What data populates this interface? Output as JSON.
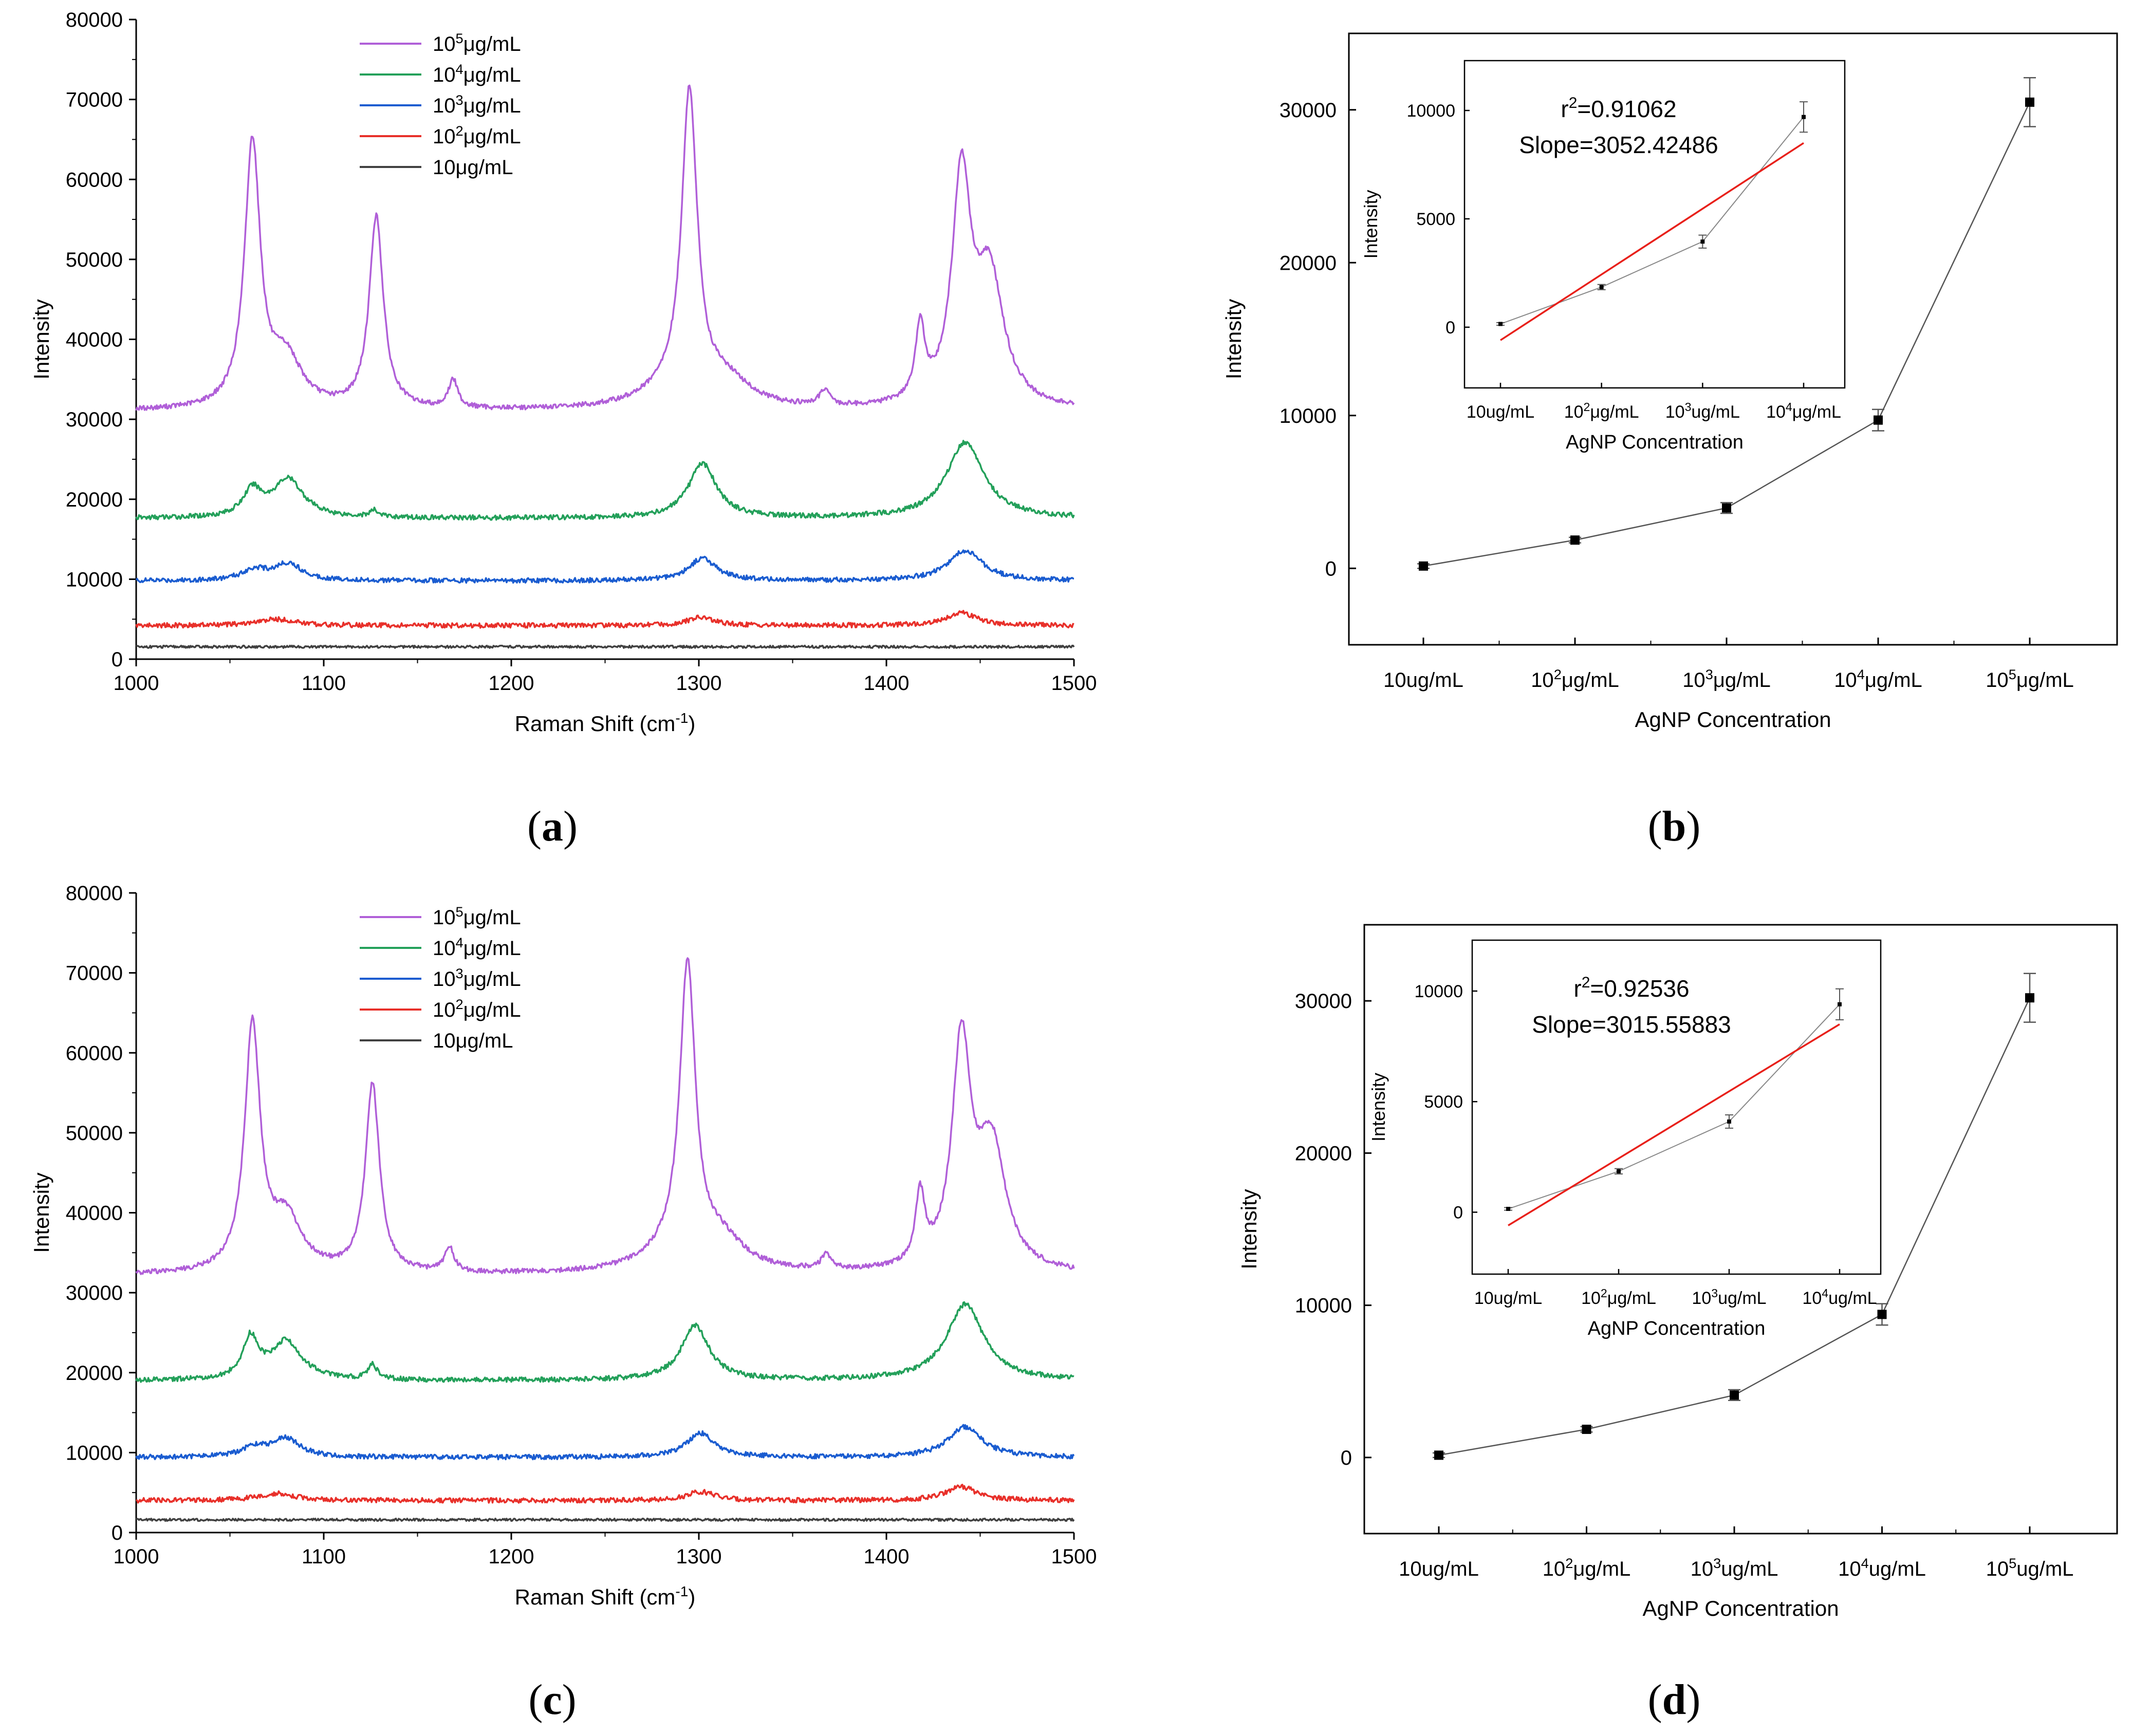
{
  "chart_data": [
    {
      "id": "a",
      "type": "line",
      "caption": "a",
      "xlabel": "Raman Shift (cm",
      "xlabel_sup": "-1",
      "xlabel_end": ")",
      "ylabel": "Intensity",
      "xlim": [
        1000,
        1500
      ],
      "ylim": [
        0,
        80000
      ],
      "xticks": [
        1000,
        1100,
        1200,
        1300,
        1400,
        1500
      ],
      "yticks": [
        0,
        10000,
        20000,
        30000,
        40000,
        50000,
        60000,
        70000,
        80000
      ],
      "legend": [
        {
          "base": "10",
          "sup": "5",
          "unit": "μg/mL",
          "color": "#b05fd8"
        },
        {
          "base": "10",
          "sup": "4",
          "unit": "μg/mL",
          "color": "#23a05a"
        },
        {
          "base": "10",
          "sup": "3",
          "unit": "μg/mL",
          "color": "#1a5cd0"
        },
        {
          "base": "10",
          "sup": "2",
          "unit": "μg/mL",
          "color": "#e8302a"
        },
        {
          "base": "10",
          "sup": "",
          "unit": "μg/mL",
          "color": "#404040"
        }
      ],
      "series": [
        {
          "name": "10^5 μg/mL",
          "color": "#b05fd8",
          "baseline": 31000,
          "peaks": [
            [
              1062,
              33000,
              5
            ],
            [
              1080,
              6000,
              10
            ],
            [
              1128,
              24000,
              4.5
            ],
            [
              1169,
              3500,
              3
            ],
            [
              1295,
              38000,
              5
            ],
            [
              1285,
              2000,
              20
            ],
            [
              1315,
              3000,
              15
            ],
            [
              1367,
              2000,
              3
            ],
            [
              1418,
              9000,
              3
            ],
            [
              1440,
              28000,
              6
            ],
            [
              1455,
              16000,
              9
            ]
          ]
        },
        {
          "name": "10^4 μg/mL",
          "color": "#23a05a",
          "baseline": 17600,
          "peaks": [
            [
              1062,
              3200,
              6
            ],
            [
              1081,
              4800,
              10
            ],
            [
              1127,
              800,
              3
            ],
            [
              1302,
              6800,
              9
            ],
            [
              1442,
              9500,
              12
            ]
          ]
        },
        {
          "name": "10^3 μg/mL",
          "color": "#1a5cd0",
          "baseline": 9800,
          "peaks": [
            [
              1063,
              1300,
              8
            ],
            [
              1081,
              2100,
              9
            ],
            [
              1302,
              2800,
              9
            ],
            [
              1442,
              3800,
              11
            ]
          ]
        },
        {
          "name": "10^2 μg/mL",
          "color": "#e8302a",
          "baseline": 4200,
          "peaks": [
            [
              1075,
              800,
              12
            ],
            [
              1301,
              1000,
              9
            ],
            [
              1440,
              1600,
              10
            ]
          ]
        },
        {
          "name": "10 μg/mL",
          "color": "#404040",
          "baseline": 1550,
          "peaks": []
        }
      ]
    },
    {
      "id": "b",
      "type": "line",
      "caption": "b",
      "xlabel": "AgNP Concentration",
      "ylabel": "Intensity",
      "categories": [
        {
          "base": "10",
          "sup": "",
          "unit": "ug/mL"
        },
        {
          "base": "10",
          "sup": "2",
          "unit": "μg/mL"
        },
        {
          "base": "10",
          "sup": "3",
          "unit": "μg/mL"
        },
        {
          "base": "10",
          "sup": "4",
          "unit": "μg/mL"
        },
        {
          "base": "10",
          "sup": "5",
          "unit": "μg/mL"
        }
      ],
      "values": [
        150,
        1850,
        3950,
        9700,
        30500
      ],
      "errors": [
        150,
        180,
        350,
        700,
        1600
      ],
      "ylim": [
        -5000,
        35000
      ],
      "yticks": [
        0,
        10000,
        20000,
        30000
      ],
      "inset": {
        "r2_text": "r",
        "r2_sup": "2",
        "r2_value": "=0.91062",
        "slope_text": "Slope=3052.42486",
        "xlabel": "AgNP Concentration",
        "ylabel": "Intensity",
        "categories": [
          {
            "base": "10",
            "sup": "",
            "unit": "ug/mL"
          },
          {
            "base": "10",
            "sup": "2",
            "unit": "μg/mL"
          },
          {
            "base": "10",
            "sup": "3",
            "unit": "ug/mL"
          },
          {
            "base": "10",
            "sup": "4",
            "unit": "μg/mL"
          }
        ],
        "values": [
          150,
          1850,
          3950,
          9700
        ],
        "errors": [
          60,
          120,
          300,
          700
        ],
        "fit": [
          -600,
          8500
        ],
        "ylim": [
          -2800,
          12300
        ],
        "yticks": [
          0,
          5000,
          10000
        ]
      }
    },
    {
      "id": "c",
      "type": "line",
      "caption": "c",
      "xlabel": "Raman Shift (cm",
      "xlabel_sup": "-1",
      "xlabel_end": ")",
      "ylabel": "Intensity",
      "xlim": [
        1000,
        1500
      ],
      "ylim": [
        0,
        80000
      ],
      "xticks": [
        1000,
        1100,
        1200,
        1300,
        1400,
        1500
      ],
      "yticks": [
        0,
        10000,
        20000,
        30000,
        40000,
        50000,
        60000,
        70000,
        80000
      ],
      "legend": [
        {
          "base": "10",
          "sup": "5",
          "unit": "μg/mL",
          "color": "#b05fd8"
        },
        {
          "base": "10",
          "sup": "4",
          "unit": "μg/mL",
          "color": "#23a05a"
        },
        {
          "base": "10",
          "sup": "3",
          "unit": "μg/mL",
          "color": "#1a5cd0"
        },
        {
          "base": "10",
          "sup": "2",
          "unit": "μg/mL",
          "color": "#e8302a"
        },
        {
          "base": "10",
          "sup": "",
          "unit": "μg/mL",
          "color": "#404040"
        }
      ],
      "series": [
        {
          "name": "10^5 μg/mL",
          "color": "#b05fd8",
          "baseline": 32200,
          "peaks": [
            [
              1062,
              30500,
              5
            ],
            [
              1080,
              6500,
              10
            ],
            [
              1126,
              23500,
              4.5
            ],
            [
              1167,
              3000,
              3
            ],
            [
              1294,
              36500,
              5
            ],
            [
              1285,
              2000,
              20
            ],
            [
              1312,
              3500,
              15
            ],
            [
              1368,
              2000,
              3
            ],
            [
              1418,
              8500,
              3
            ],
            [
              1440,
              28000,
              6
            ],
            [
              1456,
              15500,
              9
            ]
          ]
        },
        {
          "name": "10^4 μg/mL",
          "color": "#23a05a",
          "baseline": 19000,
          "peaks": [
            [
              1061,
              5000,
              5
            ],
            [
              1080,
              4800,
              10
            ],
            [
              1126,
              1800,
              3
            ],
            [
              1298,
              6800,
              9
            ],
            [
              1442,
              9500,
              12
            ]
          ]
        },
        {
          "name": "10^3 μg/mL",
          "color": "#1a5cd0",
          "baseline": 9400,
          "peaks": [
            [
              1063,
              1200,
              8
            ],
            [
              1080,
              2300,
              9
            ],
            [
              1301,
              3000,
              9
            ],
            [
              1442,
              3800,
              11
            ]
          ]
        },
        {
          "name": "10^2 μg/mL",
          "color": "#e8302a",
          "baseline": 4000,
          "peaks": [
            [
              1075,
              900,
              12
            ],
            [
              1301,
              1100,
              9
            ],
            [
              1440,
              1700,
              10
            ]
          ]
        },
        {
          "name": "10 μg/mL",
          "color": "#404040",
          "baseline": 1600,
          "peaks": []
        }
      ]
    },
    {
      "id": "d",
      "type": "line",
      "caption": "d",
      "xlabel": "AgNP Concentration",
      "ylabel": "Intensity",
      "categories": [
        {
          "base": "10",
          "sup": "",
          "unit": "ug/mL"
        },
        {
          "base": "10",
          "sup": "2",
          "unit": "μg/mL"
        },
        {
          "base": "10",
          "sup": "3",
          "unit": "ug/mL"
        },
        {
          "base": "10",
          "sup": "4",
          "unit": "ug/mL"
        },
        {
          "base": "10",
          "sup": "5",
          "unit": "ug/mL"
        }
      ],
      "values": [
        150,
        1850,
        4100,
        9400,
        30200
      ],
      "errors": [
        150,
        180,
        350,
        700,
        1600
      ],
      "ylim": [
        -5000,
        35000
      ],
      "yticks": [
        0,
        10000,
        20000,
        30000
      ],
      "inset": {
        "r2_text": "r",
        "r2_sup": "2",
        "r2_value": "=0.92536",
        "slope_text": "Slope=3015.55883",
        "xlabel": "AgNP Concentration",
        "ylabel": "Intensity",
        "categories": [
          {
            "base": "10",
            "sup": "",
            "unit": "ug/mL"
          },
          {
            "base": "10",
            "sup": "2",
            "unit": "μg/mL"
          },
          {
            "base": "10",
            "sup": "3",
            "unit": "ug/mL"
          },
          {
            "base": "10",
            "sup": "4",
            "unit": "ug/mL"
          }
        ],
        "values": [
          150,
          1850,
          4100,
          9400
        ],
        "errors": [
          60,
          120,
          300,
          700
        ],
        "fit": [
          -600,
          8500
        ],
        "ylim": [
          -2800,
          12300
        ],
        "yticks": [
          0,
          5000,
          10000
        ]
      }
    }
  ]
}
